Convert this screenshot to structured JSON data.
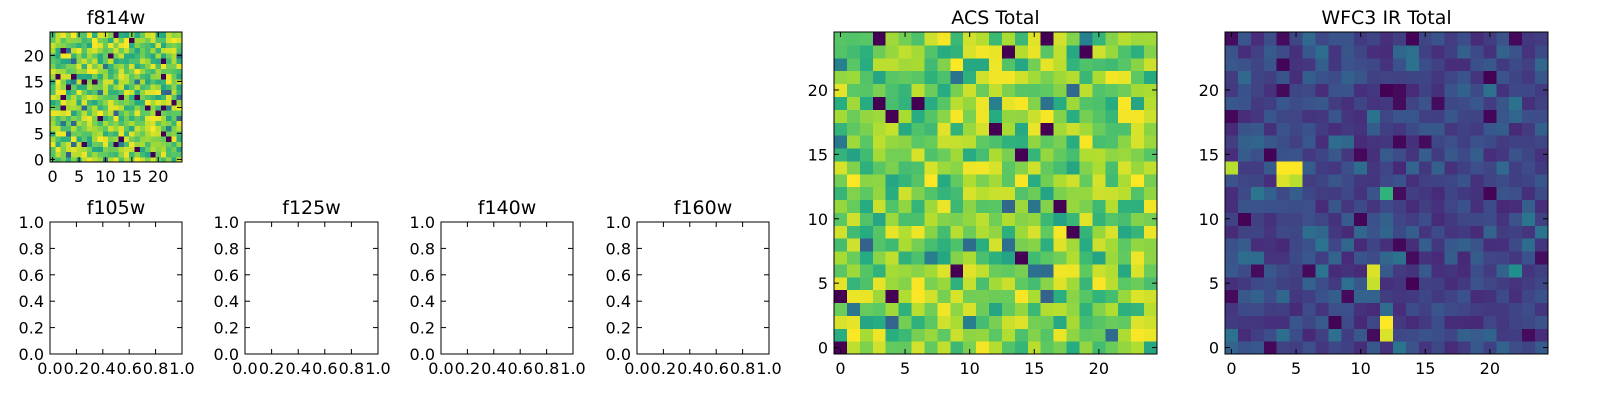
{
  "chart_data": [
    {
      "type": "heatmap",
      "title": "f814w",
      "grid_size": 25,
      "colormap": "viridis",
      "xticks": [
        "0",
        "5",
        "10",
        "15",
        "20"
      ],
      "yticks": [
        "0",
        "5",
        "10",
        "15",
        "20"
      ],
      "xlim": [
        -0.5,
        24.5
      ],
      "ylim": [
        -0.5,
        24.5
      ],
      "value_range": [
        0,
        1
      ],
      "value_distribution": "mostly high (green-yellow) with sparse dark cells",
      "seed": 814
    },
    {
      "type": "heatmap",
      "title": "ACS Total",
      "grid_size": 25,
      "colormap": "viridis",
      "xticks": [
        "0",
        "5",
        "10",
        "15",
        "20"
      ],
      "yticks": [
        "0",
        "5",
        "10",
        "15",
        "20"
      ],
      "xlim": [
        -0.5,
        24.5
      ],
      "ylim": [
        -0.5,
        24.5
      ],
      "value_range": [
        0,
        1
      ],
      "value_distribution": "mostly high (green-yellow) with sparse dark cells",
      "seed": 2024
    },
    {
      "type": "heatmap",
      "title": "WFC3 IR Total",
      "grid_size": 25,
      "colormap": "viridis",
      "xticks": [
        "0",
        "5",
        "10",
        "15",
        "20"
      ],
      "yticks": [
        "0",
        "5",
        "10",
        "15",
        "20"
      ],
      "xlim": [
        -0.5,
        24.5
      ],
      "ylim": [
        -0.5,
        24.5
      ],
      "value_range": [
        0,
        1
      ],
      "value_distribution": "mostly low (dark blue) with a few bright hot pixels",
      "hot_cells": [
        {
          "x": 4,
          "y": 14,
          "value": 1.0
        },
        {
          "x": 5,
          "y": 14,
          "value": 1.0
        },
        {
          "x": 4,
          "y": 13,
          "value": 0.95
        },
        {
          "x": 5,
          "y": 13,
          "value": 0.9
        },
        {
          "x": 0,
          "y": 14,
          "value": 0.9
        },
        {
          "x": 11,
          "y": 6,
          "value": 0.95
        },
        {
          "x": 11,
          "y": 5,
          "value": 0.92
        },
        {
          "x": 12,
          "y": 2,
          "value": 1.0
        },
        {
          "x": 12,
          "y": 1,
          "value": 0.95
        },
        {
          "x": 12,
          "y": 12,
          "value": 0.65
        },
        {
          "x": 22,
          "y": 6,
          "value": 0.5
        }
      ],
      "seed": 1600
    },
    {
      "type": "empty",
      "title": "f105w",
      "xticks": [
        "0.0",
        "0.2",
        "0.4",
        "0.6",
        "0.8",
        "1.0"
      ],
      "yticks": [
        "0.0",
        "0.2",
        "0.4",
        "0.6",
        "0.8",
        "1.0"
      ],
      "xlim": [
        0,
        1
      ],
      "ylim": [
        0,
        1
      ]
    },
    {
      "type": "empty",
      "title": "f125w",
      "xticks": [
        "0.0",
        "0.2",
        "0.4",
        "0.6",
        "0.8",
        "1.0"
      ],
      "yticks": [
        "0.0",
        "0.2",
        "0.4",
        "0.6",
        "0.8",
        "1.0"
      ],
      "xlim": [
        0,
        1
      ],
      "ylim": [
        0,
        1
      ]
    },
    {
      "type": "empty",
      "title": "f140w",
      "xticks": [
        "0.0",
        "0.2",
        "0.4",
        "0.6",
        "0.8",
        "1.0"
      ],
      "yticks": [
        "0.0",
        "0.2",
        "0.4",
        "0.6",
        "0.8",
        "1.0"
      ],
      "xlim": [
        0,
        1
      ],
      "ylim": [
        0,
        1
      ]
    },
    {
      "type": "empty",
      "title": "f160w",
      "xticks": [
        "0.0",
        "0.2",
        "0.4",
        "0.6",
        "0.8",
        "1.0"
      ],
      "yticks": [
        "0.0",
        "0.2",
        "0.4",
        "0.6",
        "0.8",
        "1.0"
      ],
      "xlim": [
        0,
        1
      ],
      "ylim": [
        0,
        1
      ]
    }
  ]
}
